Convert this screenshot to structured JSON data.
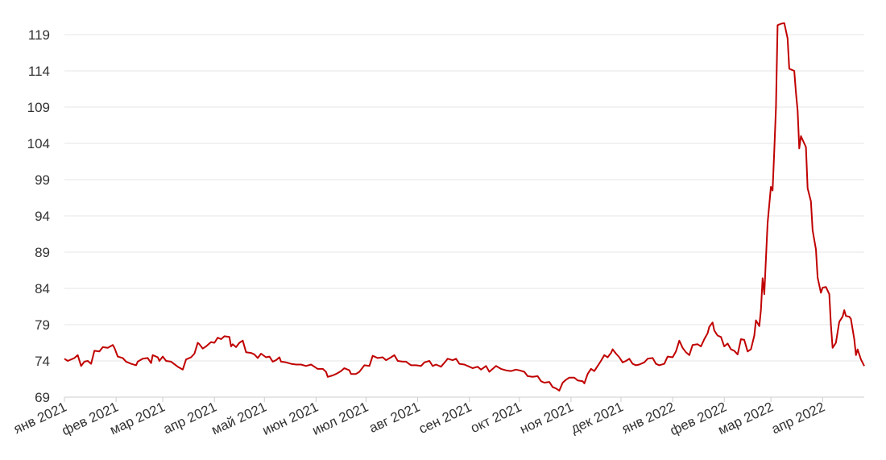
{
  "chart_data": {
    "type": "line",
    "x": [
      0,
      2,
      6,
      8,
      10,
      12,
      14,
      16,
      18,
      21,
      23,
      26,
      29,
      30,
      32,
      35,
      37,
      40,
      43,
      44,
      47,
      50,
      52,
      53,
      56,
      57,
      59,
      61,
      64,
      68,
      71,
      73,
      76,
      78,
      80,
      81,
      83,
      85,
      88,
      90,
      92,
      94,
      96,
      99,
      100,
      101,
      103,
      105,
      107,
      109,
      112,
      114,
      116,
      118,
      121,
      123,
      125,
      127,
      129,
      130,
      133,
      136,
      139,
      142,
      145,
      148,
      150,
      152,
      155,
      157,
      158,
      161,
      163,
      166,
      168,
      171,
      172,
      175,
      177,
      180,
      183,
      185,
      186,
      188,
      191,
      193,
      196,
      198,
      200,
      203,
      205,
      208,
      211,
      214,
      216,
      219,
      221,
      223,
      226,
      229,
      230,
      233,
      235,
      237,
      240,
      243,
      245,
      248,
      250,
      253,
      255,
      257,
      259,
      262,
      265,
      268,
      271,
      273,
      276,
      278,
      281,
      284,
      286,
      288,
      291,
      293,
      295,
      297,
      299,
      301,
      303,
      306,
      308,
      311,
      312,
      314,
      316,
      318,
      320,
      322,
      324,
      326,
      328,
      329,
      331,
      333,
      335,
      337,
      339,
      341,
      343,
      345,
      348,
      350,
      353,
      355,
      357,
      360,
      362,
      365,
      367,
      369,
      371,
      373,
      375,
      377,
      380,
      382,
      384,
      386,
      387,
      389,
      390,
      392,
      394,
      396,
      398,
      400,
      402,
      404,
      406,
      408,
      410,
      412,
      414,
      415,
      417,
      418,
      419,
      420,
      421,
      422,
      424,
      425,
      426,
      427,
      428,
      430,
      432,
      434,
      435,
      438,
      439,
      440,
      441,
      442,
      444,
      445,
      446,
      448,
      449,
      451,
      452,
      454,
      455,
      457,
      459,
      460,
      461,
      463,
      465,
      467,
      468,
      469,
      471,
      472,
      474,
      475,
      476,
      478,
      480
    ],
    "series": [
      {
        "color": "#c00000",
        "values": [
          74.3,
          74.0,
          74.4,
          74.8,
          73.3,
          73.9,
          74.0,
          73.6,
          75.4,
          75.3,
          75.9,
          75.8,
          76.2,
          75.8,
          74.6,
          74.4,
          73.9,
          73.6,
          73.4,
          73.9,
          74.3,
          74.4,
          73.7,
          74.8,
          74.5,
          74.0,
          74.6,
          74.0,
          73.9,
          73.2,
          72.8,
          74.2,
          74.5,
          75.0,
          76.5,
          76.3,
          75.7,
          76.0,
          76.6,
          76.5,
          77.2,
          77.0,
          77.4,
          77.3,
          76.0,
          76.3,
          75.9,
          76.5,
          76.8,
          75.2,
          75.1,
          74.9,
          74.4,
          75.0,
          74.5,
          74.6,
          73.9,
          74.1,
          74.5,
          73.9,
          73.8,
          73.6,
          73.5,
          73.5,
          73.3,
          73.5,
          73.2,
          72.9,
          72.9,
          72.5,
          71.8,
          72.0,
          72.2,
          72.6,
          73.0,
          72.7,
          72.2,
          72.2,
          72.5,
          73.4,
          73.3,
          74.7,
          74.6,
          74.4,
          74.5,
          74.1,
          74.5,
          74.8,
          74.0,
          73.9,
          73.9,
          73.4,
          73.4,
          73.3,
          73.8,
          74.0,
          73.3,
          73.5,
          73.2,
          74.0,
          74.3,
          74.1,
          74.3,
          73.6,
          73.5,
          73.2,
          73.0,
          73.2,
          72.8,
          73.3,
          72.5,
          72.9,
          73.3,
          72.9,
          72.7,
          72.6,
          72.8,
          72.7,
          72.5,
          71.9,
          71.8,
          71.9,
          71.2,
          71.0,
          71.1,
          70.4,
          70.2,
          69.9,
          71.0,
          71.4,
          71.7,
          71.7,
          71.3,
          71.2,
          70.9,
          72.2,
          72.9,
          72.6,
          73.3,
          74.0,
          74.8,
          74.5,
          75.1,
          75.6,
          75.0,
          74.5,
          73.8,
          74.0,
          74.3,
          73.6,
          73.4,
          73.5,
          73.8,
          74.3,
          74.4,
          73.6,
          73.4,
          73.6,
          74.6,
          74.5,
          75.3,
          76.8,
          75.8,
          75.2,
          74.8,
          76.2,
          76.3,
          76.0,
          77.0,
          77.8,
          78.7,
          79.3,
          78.2,
          77.5,
          77.3,
          76.0,
          76.4,
          75.6,
          75.4,
          74.9,
          77.0,
          76.9,
          75.3,
          75.6,
          77.5,
          79.6,
          78.8,
          81.0,
          85.4,
          83.2,
          88.0,
          93.0,
          98.0,
          97.5,
          103.0,
          109.0,
          120.3,
          120.5,
          120.6,
          118.5,
          114.3,
          114.0,
          111.0,
          108.5,
          103.3,
          105.0,
          104.0,
          103.5,
          97.8,
          96.0,
          92.0,
          89.4,
          85.5,
          83.4,
          84.1,
          84.2,
          83.2,
          79.0,
          75.8,
          76.5,
          79.4,
          80.1,
          81.0,
          80.2,
          80.1,
          79.8,
          77.0,
          74.8,
          75.6,
          74.2,
          73.3
        ]
      }
    ],
    "xlim": [
      0,
      480
    ],
    "xticks": [
      {
        "value": 0,
        "label": "янв 2021"
      },
      {
        "value": 31,
        "label": "фев 2021"
      },
      {
        "value": 59,
        "label": "мар 2021"
      },
      {
        "value": 90,
        "label": "апр 2021"
      },
      {
        "value": 120,
        "label": "май 2021"
      },
      {
        "value": 151,
        "label": "июн 2021"
      },
      {
        "value": 181,
        "label": "июл 2021"
      },
      {
        "value": 212,
        "label": "авг 2021"
      },
      {
        "value": 243,
        "label": "сен 2021"
      },
      {
        "value": 273,
        "label": "окт 2021"
      },
      {
        "value": 304,
        "label": "ноя 2021"
      },
      {
        "value": 334,
        "label": "дек 2021"
      },
      {
        "value": 365,
        "label": "янв 2022"
      },
      {
        "value": 396,
        "label": "фев 2022"
      },
      {
        "value": 424,
        "label": "мар 2022"
      },
      {
        "value": 455,
        "label": "апр 2022"
      }
    ],
    "ylim": [
      69,
      121.5
    ],
    "yticks": [
      69,
      74,
      79,
      84,
      89,
      94,
      99,
      104,
      109,
      114,
      119
    ],
    "grid": true
  }
}
